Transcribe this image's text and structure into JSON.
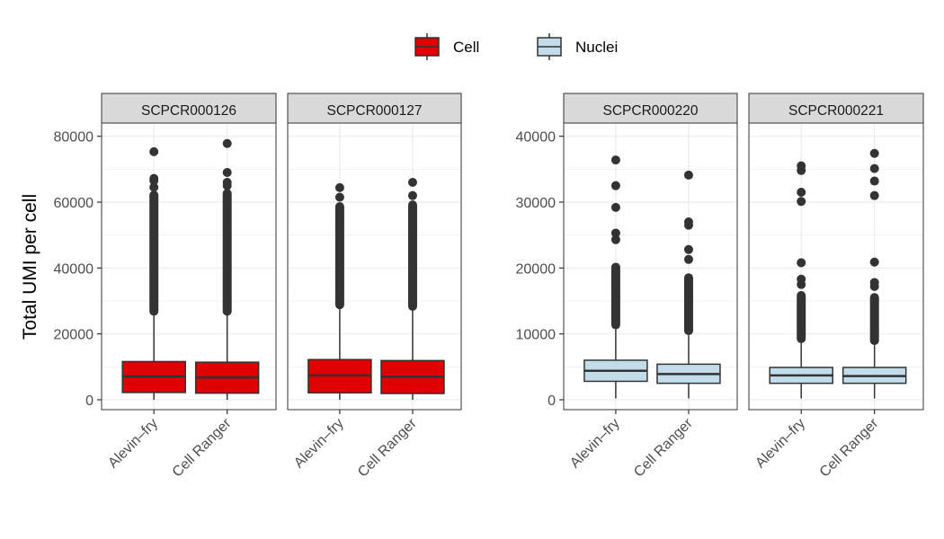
{
  "legend": {
    "items": [
      {
        "label": "Cell",
        "color": "#e00000"
      },
      {
        "label": "Nuclei",
        "color": "#c2dde9"
      }
    ]
  },
  "y_axis_title": "Total UMI per cell",
  "chart_data": [
    {
      "type": "box",
      "group": "Cell",
      "ylabel": "Total UMI per cell",
      "ylim": [
        -3000,
        84000
      ],
      "yticks": [
        0,
        20000,
        40000,
        60000,
        80000
      ],
      "ytick_labels": [
        "0",
        "20000",
        "40000",
        "60000",
        "80000"
      ],
      "grid": true,
      "fill": "#e00000",
      "panels": [
        {
          "title": "SCPCR000126",
          "categories": [
            "Alevin–fry",
            "Cell Ranger"
          ],
          "boxes": [
            {
              "q1": 2200,
              "median": 7100,
              "q3": 11600,
              "whisker_low": 0,
              "whisker_high": 25500,
              "outlier_band": [
                25500,
                63500
              ],
              "outliers": [
                64500,
                66500,
                67200,
                75300
              ]
            },
            {
              "q1": 2000,
              "median": 6800,
              "q3": 11400,
              "whisker_low": 0,
              "whisker_high": 25500,
              "outlier_band": [
                25500,
                64000
              ],
              "outliers": [
                65000,
                66000,
                69000,
                77800
              ]
            }
          ]
        },
        {
          "title": "SCPCR000127",
          "categories": [
            "Alevin–fry",
            "Cell Ranger"
          ],
          "boxes": [
            {
              "q1": 2100,
              "median": 7400,
              "q3": 12200,
              "whisker_low": 0,
              "whisker_high": 27500,
              "outlier_band": [
                27500,
                60000
              ],
              "outliers": [
                61500,
                64400
              ]
            },
            {
              "q1": 1900,
              "median": 7000,
              "q3": 11900,
              "whisker_low": 0,
              "whisker_high": 27000,
              "outlier_band": [
                27000,
                60500
              ],
              "outliers": [
                62000,
                66000
              ]
            }
          ]
        }
      ]
    },
    {
      "type": "box",
      "group": "Nuclei",
      "ylim": [
        -1500,
        42000
      ],
      "yticks": [
        0,
        10000,
        20000,
        30000,
        40000
      ],
      "ytick_labels": [
        "0",
        "10000",
        "20000",
        "30000",
        "40000"
      ],
      "grid": true,
      "fill": "#c2dde9",
      "panels": [
        {
          "title": "SCPCR000220",
          "categories": [
            "Alevin–fry",
            "Cell Ranger"
          ],
          "boxes": [
            {
              "q1": 2800,
              "median": 4400,
              "q3": 6000,
              "whisker_low": 200,
              "whisker_high": 10700,
              "outlier_band": [
                10700,
                20800
              ],
              "outliers": [
                24300,
                25300,
                29200,
                32500,
                36400
              ]
            },
            {
              "q1": 2500,
              "median": 3900,
              "q3": 5400,
              "whisker_low": 200,
              "whisker_high": 9800,
              "outlier_band": [
                9800,
                19200
              ],
              "outliers": [
                21300,
                22800,
                26500,
                27000,
                34100
              ]
            }
          ]
        },
        {
          "title": "SCPCR000221",
          "categories": [
            "Alevin–fry",
            "Cell Ranger"
          ],
          "boxes": [
            {
              "q1": 2500,
              "median": 3700,
              "q3": 4900,
              "whisker_low": 200,
              "whisker_high": 8600,
              "outlier_band": [
                8600,
                16500
              ],
              "outliers": [
                17500,
                18300,
                20800,
                30100,
                31500,
                34800,
                35500
              ]
            },
            {
              "q1": 2500,
              "median": 3600,
              "q3": 4900,
              "whisker_low": 200,
              "whisker_high": 8300,
              "outlier_band": [
                8300,
                16200
              ],
              "outliers": [
                17200,
                17800,
                20900,
                31000,
                33200,
                35100,
                37400
              ]
            }
          ]
        }
      ]
    }
  ]
}
